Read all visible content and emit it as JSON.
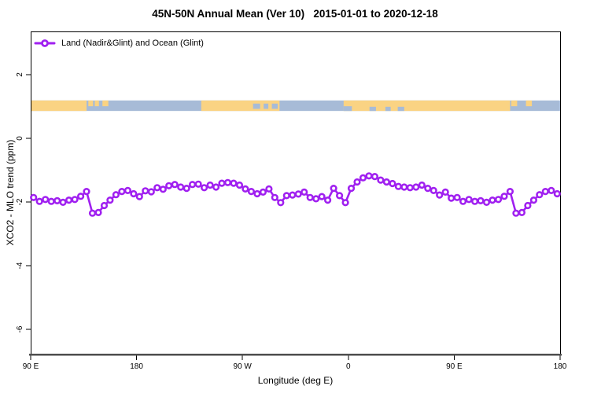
{
  "title": "45N-50N Annual Mean (Ver 10)   2015-01-01 to 2020-12-18",
  "legend": {
    "label": "Land (Nadir&Glint) and Ocean (Glint)"
  },
  "colors": {
    "series": "#A020F0",
    "marker_fill": "#ffffff",
    "land": "#FAD383",
    "ocean": "#A7BBD7",
    "axis": "#000000",
    "baseline": "#4d4d4d",
    "background": "#ffffff"
  },
  "chart_data": {
    "type": "line",
    "title": "45N-50N Annual Mean (Ver 10)   2015-01-01 to 2020-12-18",
    "xlabel": "Longitude (deg E)",
    "ylabel": "XCO2 - MLO trend (ppm)",
    "grid": false,
    "legend_position": "top-left-inside",
    "xlim_display_deg": [
      90,
      540
    ],
    "ylim": [
      -6.8,
      3.4
    ],
    "x_ticks": [
      {
        "deg": 90,
        "label": "90 E"
      },
      {
        "deg": 180,
        "label": "180"
      },
      {
        "deg": 270,
        "label": "90 W"
      },
      {
        "deg": 360,
        "label": "0"
      },
      {
        "deg": 450,
        "label": "90 E"
      },
      {
        "deg": 540,
        "label": "180"
      }
    ],
    "y_ticks": [
      {
        "value": 2,
        "label": "2"
      },
      {
        "value": 0,
        "label": "0"
      },
      {
        "value": -2,
        "label": "-2"
      },
      {
        "value": -4,
        "label": "-4"
      },
      {
        "value": -6,
        "label": "-6"
      }
    ],
    "series": [
      {
        "name": "Land (Nadir&Glint) and Ocean (Glint)",
        "x_start_deg": 92.5,
        "x_step_deg": 5,
        "values": [
          -1.86,
          -1.98,
          -1.92,
          -1.98,
          -1.96,
          -2.01,
          -1.94,
          -1.92,
          -1.82,
          -1.67,
          -2.35,
          -2.33,
          -2.11,
          -1.94,
          -1.77,
          -1.67,
          -1.64,
          -1.74,
          -1.83,
          -1.65,
          -1.68,
          -1.55,
          -1.6,
          -1.49,
          -1.45,
          -1.53,
          -1.57,
          -1.45,
          -1.44,
          -1.55,
          -1.47,
          -1.53,
          -1.41,
          -1.39,
          -1.41,
          -1.47,
          -1.59,
          -1.67,
          -1.74,
          -1.69,
          -1.59,
          -1.86,
          -2.02,
          -1.8,
          -1.78,
          -1.75,
          -1.69,
          -1.86,
          -1.9,
          -1.83,
          -1.94,
          -1.57,
          -1.8,
          -2.02,
          -1.57,
          -1.37,
          -1.24,
          -1.18,
          -1.2,
          -1.31,
          -1.37,
          -1.42,
          -1.51,
          -1.53,
          -1.55,
          -1.53,
          -1.47,
          -1.57,
          -1.64,
          -1.78,
          -1.69,
          -1.88,
          -1.86,
          -1.98,
          -1.92,
          -1.98,
          -1.96,
          -2.01,
          -1.94,
          -1.92,
          -1.82,
          -1.67,
          -2.35,
          -2.33,
          -2.11,
          -1.94,
          -1.77,
          -1.67,
          -1.64,
          -1.74
        ]
      }
    ],
    "map_band": {
      "description": "land/ocean strip for 45N-50N plotted at ~+1 ppm",
      "value_top": 1.19,
      "value_bottom": 0.86,
      "ocean_extent_deg": [
        90,
        540
      ],
      "land_segments_deg": [
        [
          90,
          137.5
        ],
        [
          235,
          301.5
        ],
        [
          356,
          497.5
        ]
      ],
      "island_segments_top_deg": [
        [
          139,
          143
        ],
        [
          144.5,
          148
        ],
        [
          151,
          156
        ],
        [
          498.5,
          503.5
        ],
        [
          511,
          516
        ]
      ],
      "lake_segments_deg": [
        [
          279,
          285
        ],
        [
          288,
          292
        ],
        [
          295,
          300
        ]
      ],
      "inland_sea_segments_deg": [
        [
          378,
          383.5
        ],
        [
          391.5,
          396
        ],
        [
          402,
          407.5
        ]
      ],
      "coast_notch_bottom_deg": [
        [
          356,
          363
        ]
      ]
    }
  }
}
